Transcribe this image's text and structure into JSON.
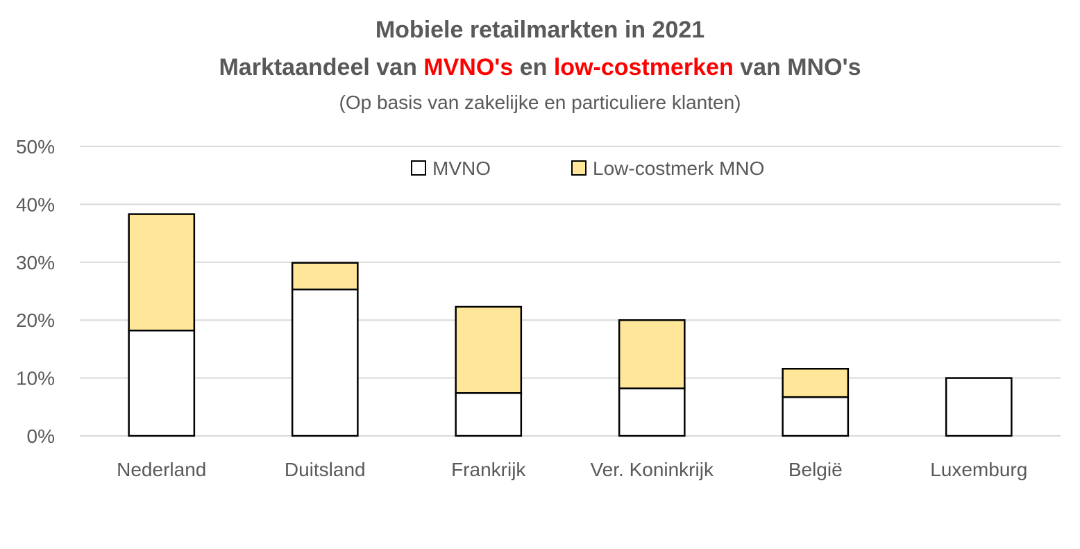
{
  "chart_data": {
    "type": "bar",
    "stacked": true,
    "title_line1": "Mobiele retailmarkten in 2021",
    "title_line2": {
      "prefix": "Marktaandeel van ",
      "highlight1": "MVNO's",
      "middle": " en ",
      "highlight2": "low-costmerken",
      "suffix": " van MNO's"
    },
    "subtitle": "(Op basis van zakelijke en particuliere klanten)",
    "categories": [
      "Nederland",
      "Duitsland",
      "Frankrijk",
      "Ver. Koninkrijk",
      "België",
      "Luxemburg"
    ],
    "series": [
      {
        "name": "MVNO",
        "color": "#ffffff",
        "values": [
          18.2,
          25.3,
          7.4,
          8.2,
          6.7,
          10.0
        ]
      },
      {
        "name": "Low-costmerk MNO",
        "color": "#ffe699",
        "values": [
          20.1,
          4.6,
          14.9,
          11.8,
          4.9,
          0.0
        ]
      }
    ],
    "y_ticks": [
      "0%",
      "10%",
      "20%",
      "30%",
      "40%",
      "50%"
    ],
    "ylim": [
      0,
      50
    ],
    "grid": true,
    "legend_position": "top-center",
    "highlight_color": "#ff0000"
  }
}
